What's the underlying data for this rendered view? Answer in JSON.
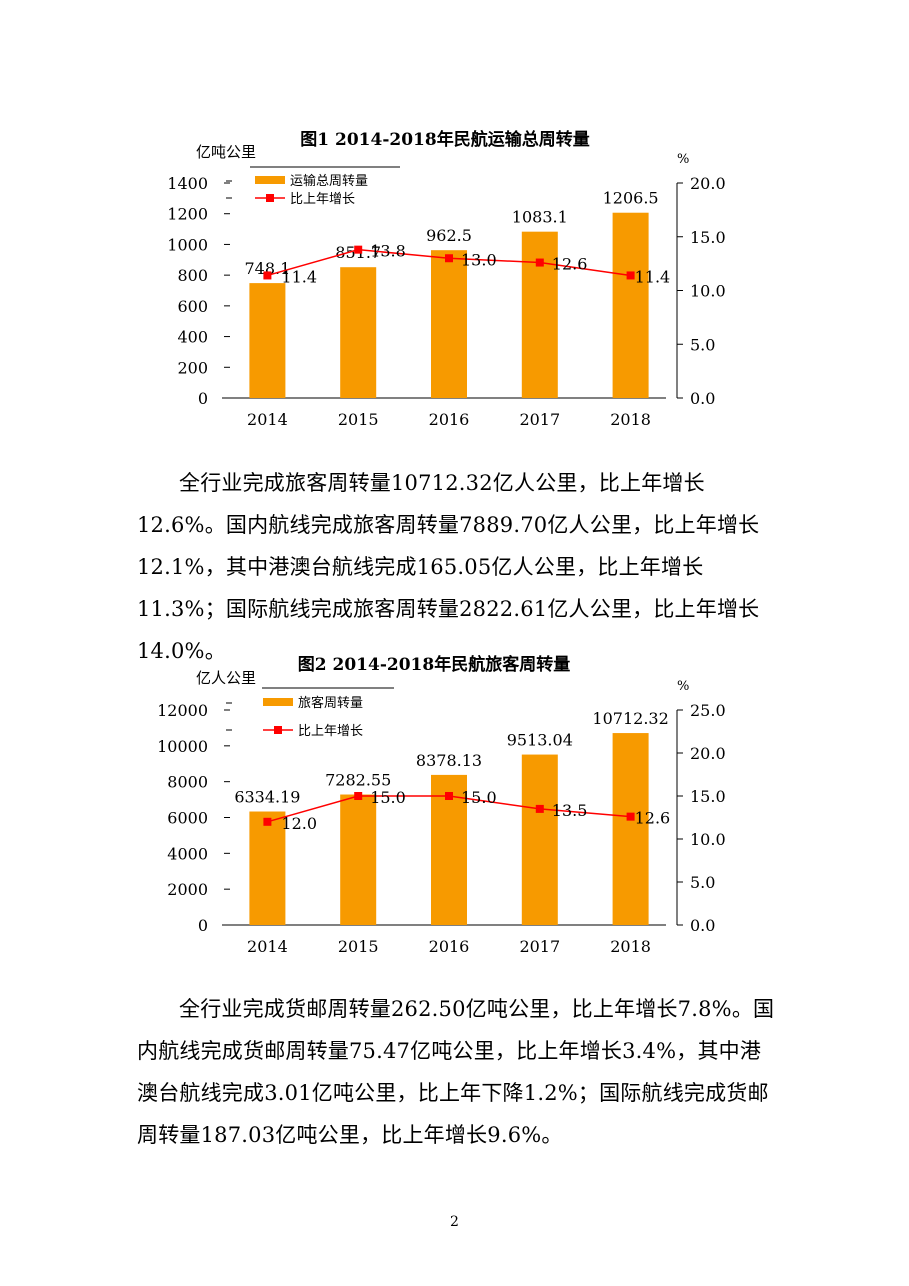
{
  "charts": [
    {
      "title": "图1 2014-2018年民航运输总周转量",
      "left_unit": "亿吨公里",
      "right_unit": "%",
      "left_ticks": [
        "0",
        "200",
        "400",
        "600",
        "800",
        "1000",
        "1200",
        "1400"
      ],
      "right_ticks": [
        "0.0",
        "5.0",
        "10.0",
        "15.0",
        "20.0"
      ],
      "legend_bar": "运输总周转量",
      "legend_line": "比上年增长",
      "bar_labels": [
        "748.1",
        "851.7",
        "962.5",
        "1083.1",
        "1206.5"
      ],
      "line_labels": [
        "11.4",
        "13.8",
        "13.0",
        "12.6",
        "11.4"
      ]
    },
    {
      "title": "图2 2014-2018年民航旅客周转量",
      "left_unit": "亿人公里",
      "right_unit": "%",
      "left_ticks": [
        "0",
        "2000",
        "4000",
        "6000",
        "8000",
        "10000",
        "12000"
      ],
      "right_ticks": [
        "0.0",
        "5.0",
        "10.0",
        "15.0",
        "20.0",
        "25.0"
      ],
      "legend_bar": "旅客周转量",
      "legend_line": "比上年增长",
      "bar_labels": [
        "6334.19",
        "7282.55",
        "8378.13",
        "9513.04",
        "10712.32"
      ],
      "line_labels": [
        "12.0",
        "15.0",
        "15.0",
        "13.5",
        "12.6"
      ]
    }
  ],
  "chart_data": [
    {
      "type": "bar",
      "title": "图1 2014-2018年民航运输总周转量",
      "categories": [
        "2014",
        "2015",
        "2016",
        "2017",
        "2018"
      ],
      "ylabel": "亿吨公里",
      "y2label": "%",
      "ylim": [
        0,
        1400
      ],
      "y2lim": [
        0,
        20
      ],
      "grid": false,
      "legend": "top-left",
      "colors": {
        "bar": "#F79A00",
        "line": "#FF0000"
      },
      "series": [
        {
          "name": "运输总周转量",
          "type": "bar",
          "axis": "left",
          "values": [
            748.1,
            851.7,
            962.5,
            1083.1,
            1206.5
          ]
        },
        {
          "name": "比上年增长",
          "type": "line",
          "axis": "right",
          "values": [
            11.4,
            13.8,
            13.0,
            12.6,
            11.4
          ]
        }
      ]
    },
    {
      "type": "bar",
      "title": "图2 2014-2018年民航旅客周转量",
      "categories": [
        "2014",
        "2015",
        "2016",
        "2017",
        "2018"
      ],
      "ylabel": "亿人公里",
      "y2label": "%",
      "ylim": [
        0,
        12000
      ],
      "y2lim": [
        0,
        25
      ],
      "grid": false,
      "legend": "top-left",
      "colors": {
        "bar": "#F79A00",
        "line": "#FF0000"
      },
      "series": [
        {
          "name": "旅客周转量",
          "type": "bar",
          "axis": "left",
          "values": [
            6334.19,
            7282.55,
            8378.13,
            9513.04,
            10712.32
          ]
        },
        {
          "name": "比上年增长",
          "type": "line",
          "axis": "right",
          "values": [
            12.0,
            15.0,
            15.0,
            13.5,
            12.6
          ]
        }
      ]
    }
  ],
  "paragraphs": [
    "全行业完成旅客周转量10712.32亿人公里，比上年增长12.6%。国内航线完成旅客周转量7889.70亿人公里，比上年增长12.1%，其中港澳台航线完成165.05亿人公里，比上年增长11.3%；国际航线完成旅客周转量2822.61亿人公里，比上年增长14.0%。",
    "全行业完成货邮周转量262.50亿吨公里，比上年增长7.8%。国内航线完成货邮周转量75.47亿吨公里，比上年增长3.4%，其中港澳台航线完成3.01亿吨公里，比上年下降1.2%；国际航线完成货邮周转量187.03亿吨公里，比上年增长9.6%。"
  ],
  "page_number": "2"
}
